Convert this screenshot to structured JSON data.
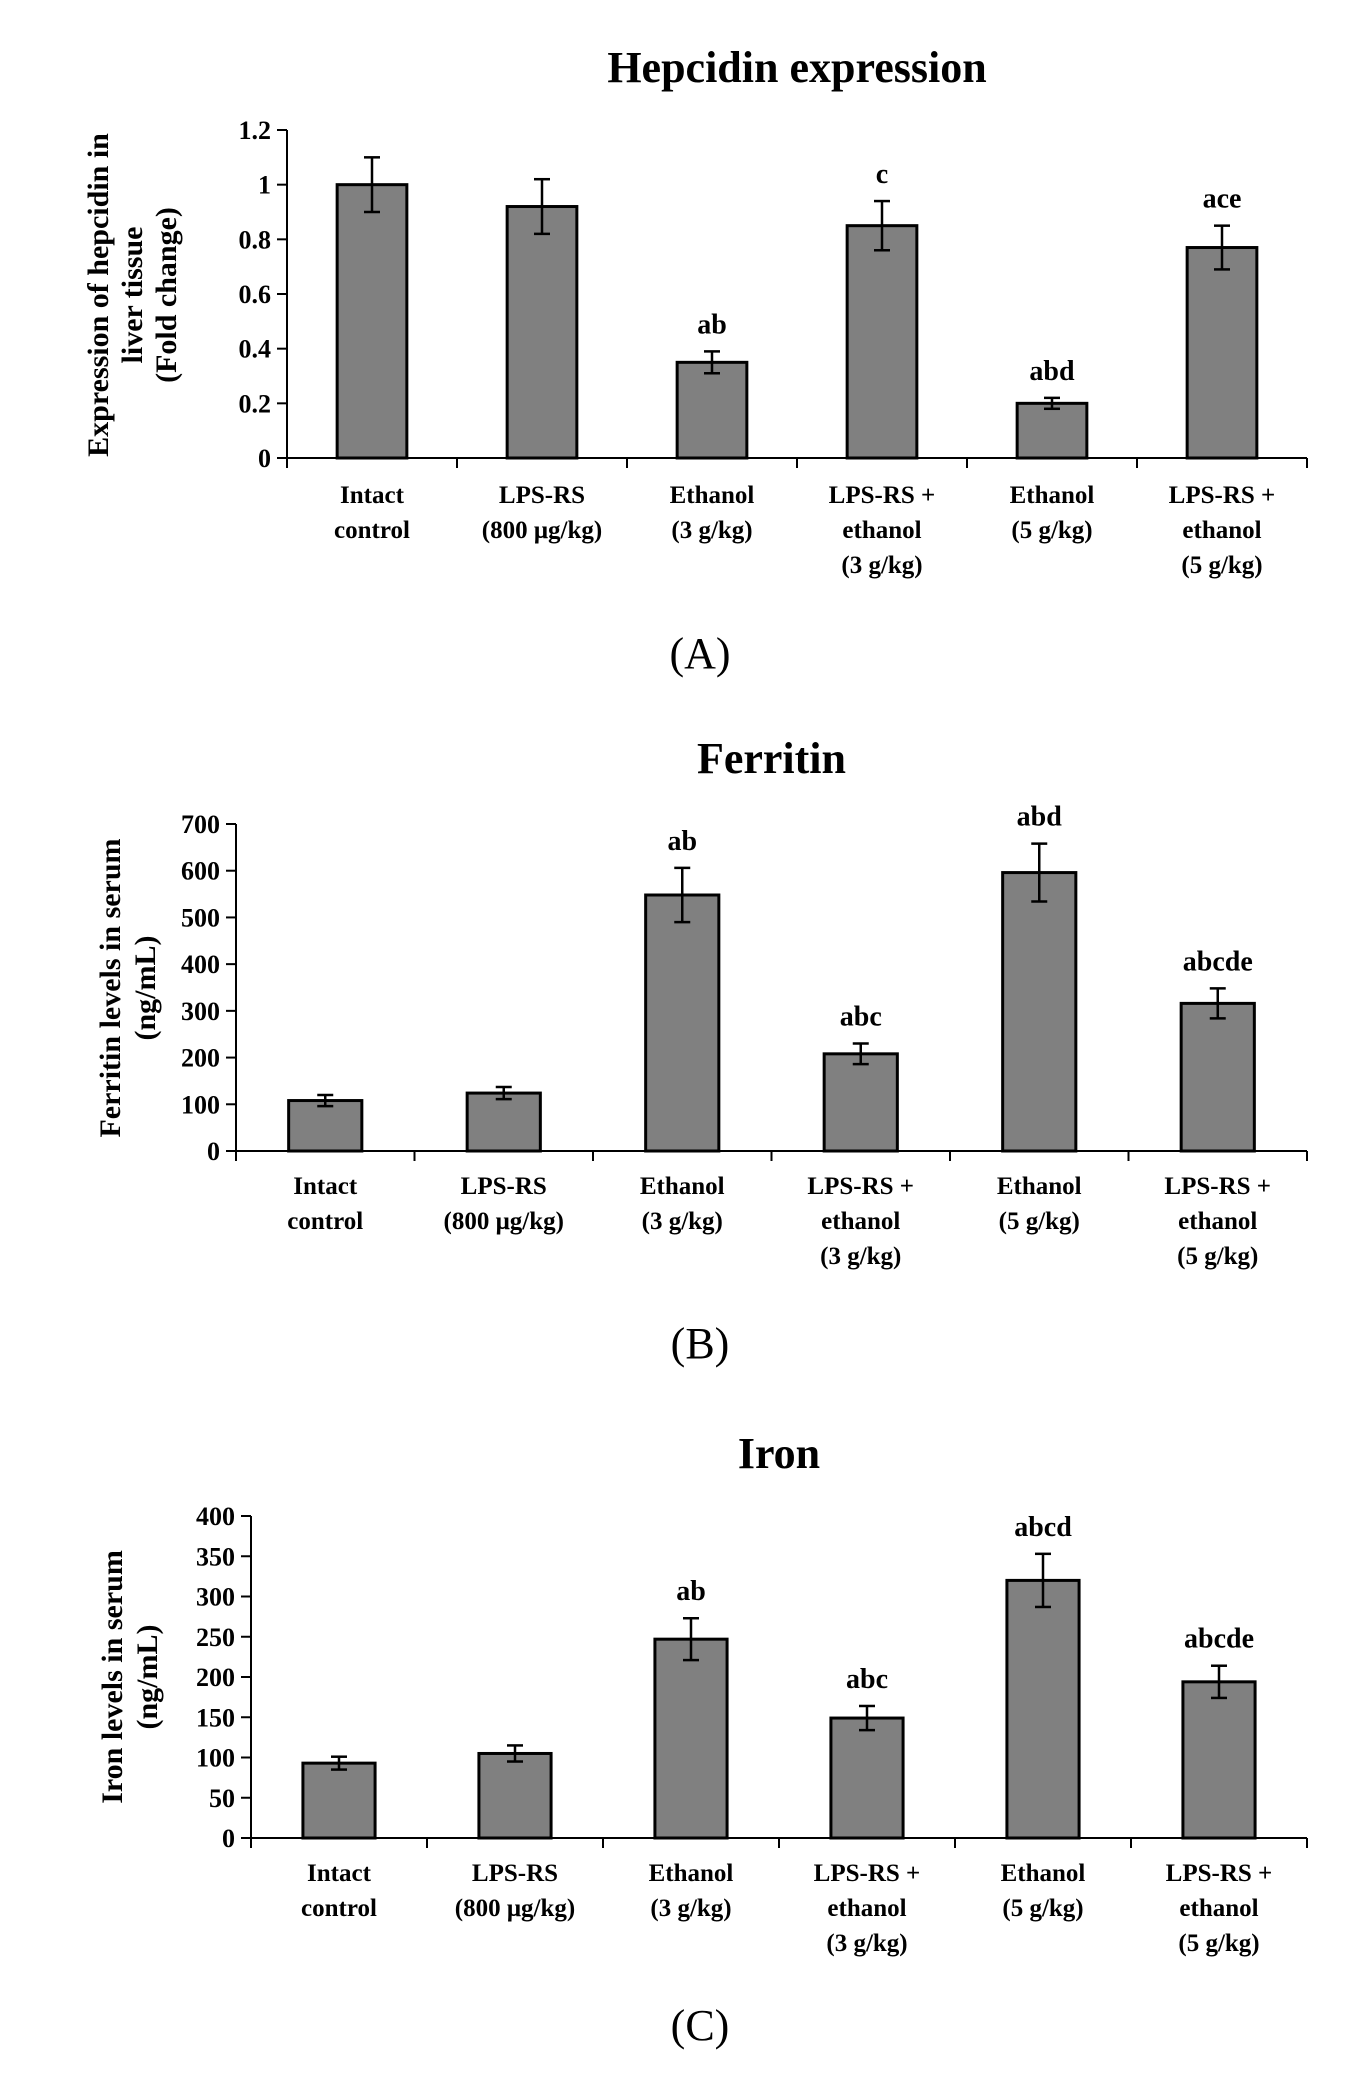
{
  "chart_data": [
    {
      "type": "bar",
      "title": "Hepcidin expression",
      "panel_label": "(A)",
      "ylabel_lines": [
        "Expression of hepcidin in",
        "liver tissue",
        "(Fold change)"
      ],
      "xlabel": "",
      "ylim": [
        0,
        1.2
      ],
      "yticks": [
        0,
        0.2,
        0.4,
        0.6,
        0.8,
        1,
        1.2
      ],
      "ytick_labels": [
        "0",
        "0.2",
        "0.4",
        "0.6",
        "0.8",
        "1",
        "1.2"
      ],
      "categories": [
        [
          "Intact",
          "control"
        ],
        [
          "LPS-RS",
          "(800 μg/kg)"
        ],
        [
          "Ethanol",
          "(3 g/kg)"
        ],
        [
          "LPS-RS +",
          "ethanol",
          "(3 g/kg)"
        ],
        [
          "Ethanol",
          "(5 g/kg)"
        ],
        [
          "LPS-RS +",
          "ethanol",
          "(5 g/kg)"
        ]
      ],
      "values": [
        1.0,
        0.92,
        0.35,
        0.85,
        0.2,
        0.77
      ],
      "errors": [
        0.1,
        0.1,
        0.04,
        0.09,
        0.02,
        0.08
      ],
      "annotations": [
        "",
        "",
        "ab",
        "c",
        "abd",
        "ace"
      ],
      "bar_color": "#808080"
    },
    {
      "type": "bar",
      "title": "Ferritin",
      "panel_label": "(B)",
      "ylabel_lines": [
        "Ferritin levels in serum",
        "(ng/mL)"
      ],
      "xlabel": "",
      "ylim": [
        0,
        700
      ],
      "yticks": [
        0,
        100,
        200,
        300,
        400,
        500,
        600,
        700
      ],
      "ytick_labels": [
        "0",
        "100",
        "200",
        "300",
        "400",
        "500",
        "600",
        "700"
      ],
      "categories": [
        [
          "Intact",
          "control"
        ],
        [
          "LPS-RS",
          "(800 μg/kg)"
        ],
        [
          "Ethanol",
          "(3 g/kg)"
        ],
        [
          "LPS-RS +",
          "ethanol",
          "(3 g/kg)"
        ],
        [
          "Ethanol",
          "(5 g/kg)"
        ],
        [
          "LPS-RS +",
          "ethanol",
          "(5 g/kg)"
        ]
      ],
      "values": [
        108,
        124,
        548,
        208,
        596,
        316
      ],
      "errors": [
        12,
        13,
        58,
        22,
        62,
        32
      ],
      "annotations": [
        "",
        "",
        "ab",
        "abc",
        "abd",
        "abcde"
      ],
      "bar_color": "#808080"
    },
    {
      "type": "bar",
      "title": "Iron",
      "panel_label": "(C)",
      "ylabel_lines": [
        "Iron levels in serum",
        "(ng/mL)"
      ],
      "xlabel": "",
      "ylim": [
        0,
        400
      ],
      "yticks": [
        0,
        50,
        100,
        150,
        200,
        250,
        300,
        350,
        400
      ],
      "ytick_labels": [
        "0",
        "50",
        "100",
        "150",
        "200",
        "250",
        "300",
        "350",
        "400"
      ],
      "categories": [
        [
          "Intact",
          "control"
        ],
        [
          "LPS-RS",
          "(800 μg/kg)"
        ],
        [
          "Ethanol",
          "(3 g/kg)"
        ],
        [
          "LPS-RS +",
          "ethanol",
          "(3 g/kg)"
        ],
        [
          "Ethanol",
          "(5 g/kg)"
        ],
        [
          "LPS-RS +",
          "ethanol",
          "(5 g/kg)"
        ]
      ],
      "values": [
        93,
        105,
        247,
        149,
        320,
        194
      ],
      "errors": [
        8,
        10,
        26,
        15,
        33,
        20
      ],
      "annotations": [
        "",
        "",
        "ab",
        "abc",
        "abcd",
        "abcde"
      ],
      "bar_color": "#808080"
    }
  ]
}
